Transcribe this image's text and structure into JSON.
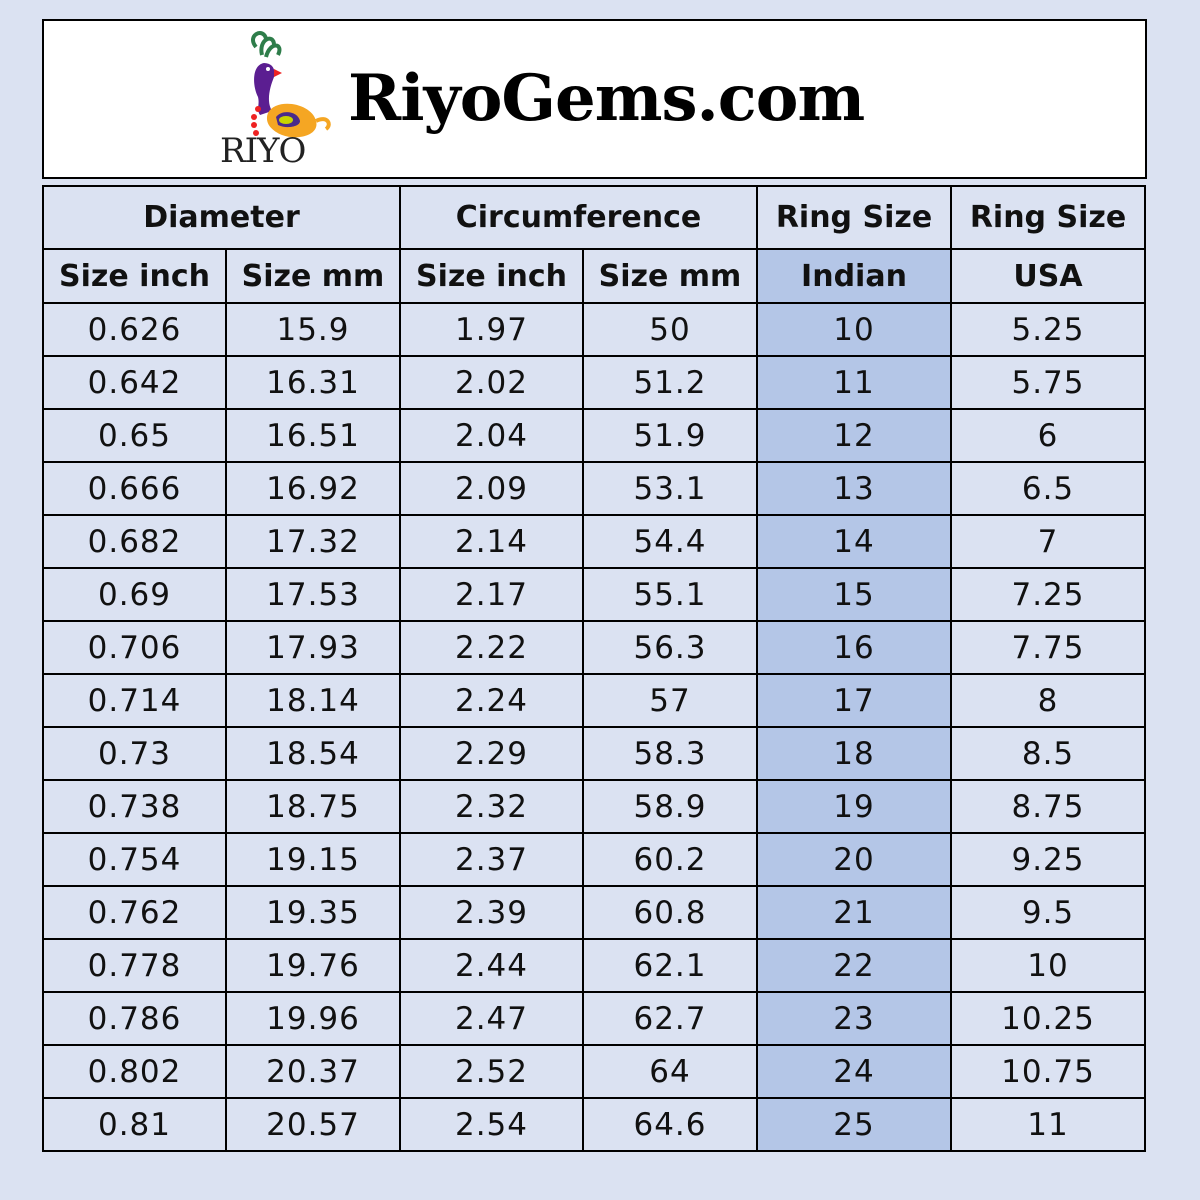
{
  "brand": {
    "logo_text": "RIYO",
    "site_title": "RiyoGems.com"
  },
  "colors": {
    "background": "#dbe2f2",
    "indian_column": "#b4c6e7"
  },
  "table": {
    "group_headers": [
      "Diameter",
      "Circumference",
      "Ring Size",
      "Ring Size"
    ],
    "sub_headers": [
      "Size inch",
      "Size mm",
      "Size inch",
      "Size mm",
      "Indian",
      "USA"
    ],
    "rows": [
      [
        "0.626",
        "15.9",
        "1.97",
        "50",
        "10",
        "5.25"
      ],
      [
        "0.642",
        "16.31",
        "2.02",
        "51.2",
        "11",
        "5.75"
      ],
      [
        "0.65",
        "16.51",
        "2.04",
        "51.9",
        "12",
        "6"
      ],
      [
        "0.666",
        "16.92",
        "2.09",
        "53.1",
        "13",
        "6.5"
      ],
      [
        "0.682",
        "17.32",
        "2.14",
        "54.4",
        "14",
        "7"
      ],
      [
        "0.69",
        "17.53",
        "2.17",
        "55.1",
        "15",
        "7.25"
      ],
      [
        "0.706",
        "17.93",
        "2.22",
        "56.3",
        "16",
        "7.75"
      ],
      [
        "0.714",
        "18.14",
        "2.24",
        "57",
        "17",
        "8"
      ],
      [
        "0.73",
        "18.54",
        "2.29",
        "58.3",
        "18",
        "8.5"
      ],
      [
        "0.738",
        "18.75",
        "2.32",
        "58.9",
        "19",
        "8.75"
      ],
      [
        "0.754",
        "19.15",
        "2.37",
        "60.2",
        "20",
        "9.25"
      ],
      [
        "0.762",
        "19.35",
        "2.39",
        "60.8",
        "21",
        "9.5"
      ],
      [
        "0.778",
        "19.76",
        "2.44",
        "62.1",
        "22",
        "10"
      ],
      [
        "0.786",
        "19.96",
        "2.47",
        "62.7",
        "23",
        "10.25"
      ],
      [
        "0.802",
        "20.37",
        "2.52",
        "64",
        "24",
        "10.75"
      ],
      [
        "0.81",
        "20.57",
        "2.54",
        "64.6",
        "25",
        "11"
      ]
    ]
  }
}
